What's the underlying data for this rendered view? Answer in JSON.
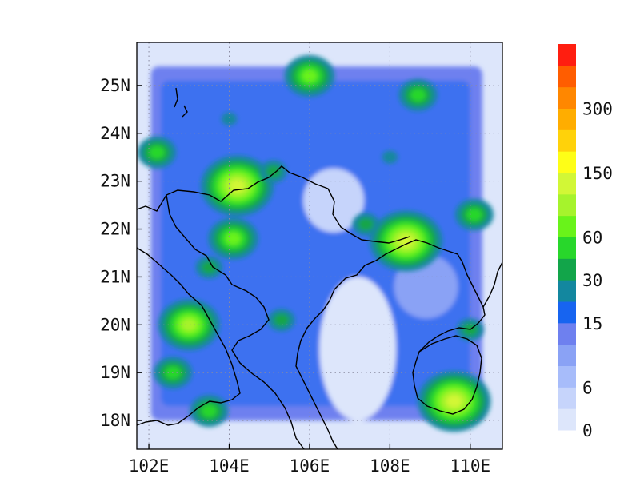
{
  "chart_data": {
    "type": "heatmap",
    "map_extent": {
      "lon": [
        101.7,
        110.8
      ],
      "lat": [
        17.4,
        25.9
      ]
    },
    "x_ticks": [
      {
        "value": 102,
        "label": "102E"
      },
      {
        "value": 104,
        "label": "104E"
      },
      {
        "value": 106,
        "label": "106E"
      },
      {
        "value": 108,
        "label": "108E"
      },
      {
        "value": 110,
        "label": "110E"
      }
    ],
    "y_ticks": [
      {
        "value": 18,
        "label": "18N"
      },
      {
        "value": 19,
        "label": "19N"
      },
      {
        "value": 20,
        "label": "20N"
      },
      {
        "value": 21,
        "label": "21N"
      },
      {
        "value": 22,
        "label": "22N"
      },
      {
        "value": 23,
        "label": "23N"
      },
      {
        "value": 24,
        "label": "24N"
      },
      {
        "value": 25,
        "label": "25N"
      }
    ],
    "grid": "dotted",
    "colorbar": {
      "colors": [
        "#dde6fb",
        "#c6d4fb",
        "#a7bcfa",
        "#8aa2f5",
        "#6e80ef",
        "#1764f0",
        "#13879f",
        "#12a54a",
        "#28d72b",
        "#69f31a",
        "#a6f32c",
        "#d2f736",
        "#fefe17",
        "#ffd20a",
        "#ffad00",
        "#ff8700",
        "#ff5d00",
        "#ff1e10"
      ],
      "labels": [
        {
          "index": 0,
          "text": "0"
        },
        {
          "index": 2,
          "text": "6"
        },
        {
          "index": 5,
          "text": "15"
        },
        {
          "index": 7,
          "text": "30"
        },
        {
          "index": 9,
          "text": "60"
        },
        {
          "index": 12,
          "text": "150"
        },
        {
          "index": 15,
          "text": "300"
        }
      ]
    },
    "hotspots": [
      {
        "lon": 104.2,
        "lat": 22.9,
        "level": 11
      },
      {
        "lon": 108.4,
        "lat": 21.75,
        "level": 11
      },
      {
        "lon": 109.6,
        "lat": 18.4,
        "level": 11
      },
      {
        "lon": 103.0,
        "lat": 20.0,
        "level": 10
      },
      {
        "lon": 104.1,
        "lat": 21.8,
        "level": 9
      },
      {
        "lon": 106.0,
        "lat": 25.2,
        "level": 9
      },
      {
        "lon": 108.7,
        "lat": 24.8,
        "level": 8
      },
      {
        "lon": 110.1,
        "lat": 22.3,
        "level": 8
      },
      {
        "lon": 103.5,
        "lat": 18.2,
        "level": 8
      },
      {
        "lon": 102.2,
        "lat": 23.6,
        "level": 8
      },
      {
        "lon": 102.6,
        "lat": 19.0,
        "level": 8
      },
      {
        "lon": 105.1,
        "lat": 23.2,
        "level": 7
      },
      {
        "lon": 105.3,
        "lat": 20.1,
        "level": 7
      },
      {
        "lon": 103.5,
        "lat": 21.2,
        "level": 7
      },
      {
        "lon": 107.4,
        "lat": 22.1,
        "level": 7
      },
      {
        "lon": 110.0,
        "lat": 19.9,
        "level": 7
      },
      {
        "lon": 104.0,
        "lat": 24.3,
        "level": 6
      },
      {
        "lon": 108.0,
        "lat": 23.5,
        "level": 6
      }
    ]
  }
}
